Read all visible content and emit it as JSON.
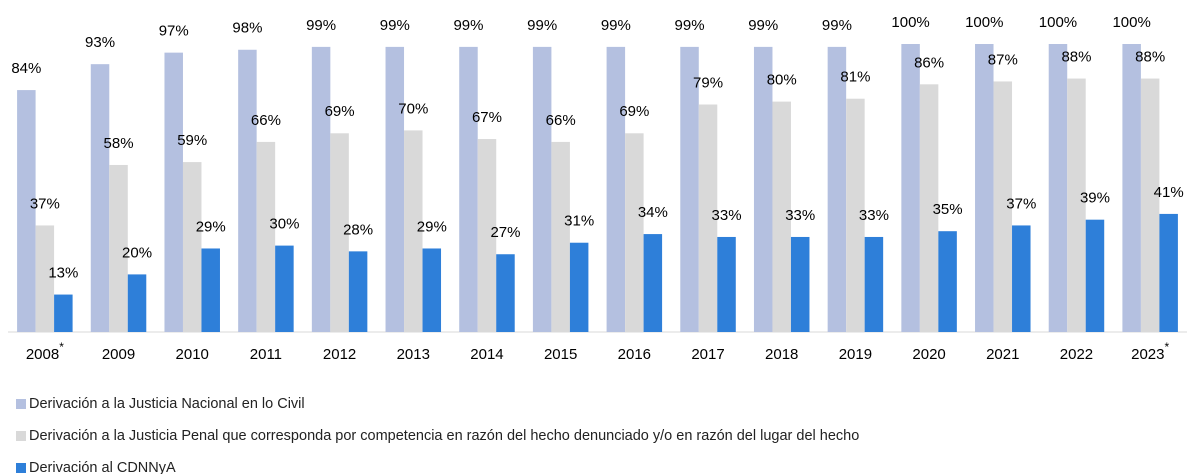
{
  "chart_data": {
    "type": "bar",
    "categories": [
      "2008",
      "2009",
      "2010",
      "2011",
      "2012",
      "2013",
      "2014",
      "2015",
      "2016",
      "2017",
      "2018",
      "2019",
      "2020",
      "2021",
      "2022",
      "2023"
    ],
    "category_notes": [
      "*",
      null,
      null,
      null,
      null,
      null,
      null,
      null,
      null,
      null,
      null,
      null,
      null,
      null,
      null,
      "*"
    ],
    "ylim": [
      0,
      100
    ],
    "legend": "bottom",
    "series": [
      {
        "name": "Derivación a la Justicia Nacional en lo Civil",
        "color": "#b4c0e0",
        "values": [
          84,
          93,
          97,
          98,
          99,
          99,
          99,
          99,
          99,
          99,
          99,
          99,
          100,
          100,
          100,
          100
        ],
        "value_labels": [
          "84%",
          "93%",
          "97%",
          "98%",
          "99%",
          "99%",
          "99%",
          "99%",
          "99%",
          "99%",
          "99%",
          "99%",
          "100%",
          "100%",
          "100%",
          "100%"
        ]
      },
      {
        "name": "Derivación a la Justicia Penal que corresponda por competencia en razón del hecho denunciado y/o en razón del lugar del hecho",
        "color": "#d9d9d9",
        "values": [
          37,
          58,
          59,
          66,
          69,
          70,
          67,
          66,
          69,
          79,
          80,
          81,
          86,
          87,
          88,
          88
        ],
        "value_labels": [
          "37%",
          "58%",
          "59%",
          "66%",
          "69%",
          "70%",
          "67%",
          "66%",
          "69%",
          "79%",
          "80%",
          "81%",
          "86%",
          "87%",
          "88%",
          "88%"
        ]
      },
      {
        "name": "Derivación al CDNNyA",
        "color": "#2e7fd9",
        "values": [
          13,
          20,
          29,
          30,
          28,
          29,
          27,
          31,
          34,
          33,
          33,
          33,
          35,
          37,
          39,
          41
        ],
        "value_labels": [
          "13%",
          "20%",
          "29%",
          "30%",
          "28%",
          "29%",
          "27%",
          "31%",
          "34%",
          "33%",
          "33%",
          "33%",
          "35%",
          "37%",
          "39%",
          "41%"
        ]
      }
    ]
  }
}
